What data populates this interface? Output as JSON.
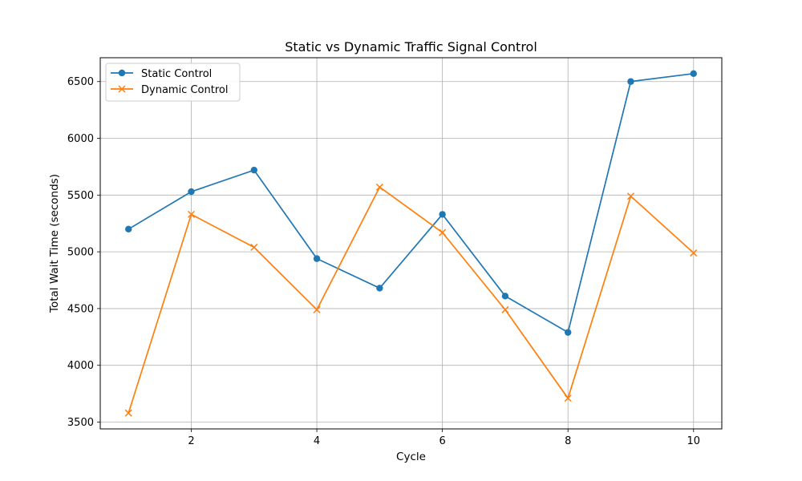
{
  "chart_data": {
    "type": "line",
    "title": "Static vs Dynamic Traffic Signal Control",
    "xlabel": "Cycle",
    "ylabel": "Total Wait Time (seconds)",
    "x": [
      1,
      2,
      3,
      4,
      5,
      6,
      7,
      8,
      9,
      10
    ],
    "xticks": [
      2,
      4,
      6,
      8,
      10
    ],
    "yticks": [
      3500,
      4000,
      4500,
      5000,
      5500,
      6000,
      6500
    ],
    "xlim": [
      0.55,
      10.45
    ],
    "ylim": [
      3440,
      6710
    ],
    "grid": true,
    "legend_position": "top-left",
    "series": [
      {
        "name": "Static Control",
        "color": "#1f77b4",
        "marker": "circle",
        "values": [
          5200,
          5530,
          5720,
          4940,
          4680,
          5330,
          4610,
          4290,
          6500,
          6570
        ]
      },
      {
        "name": "Dynamic Control",
        "color": "#ff7f0e",
        "marker": "x",
        "values": [
          3580,
          5330,
          5040,
          4490,
          5570,
          5170,
          4490,
          3710,
          5490,
          4990
        ]
      }
    ]
  }
}
